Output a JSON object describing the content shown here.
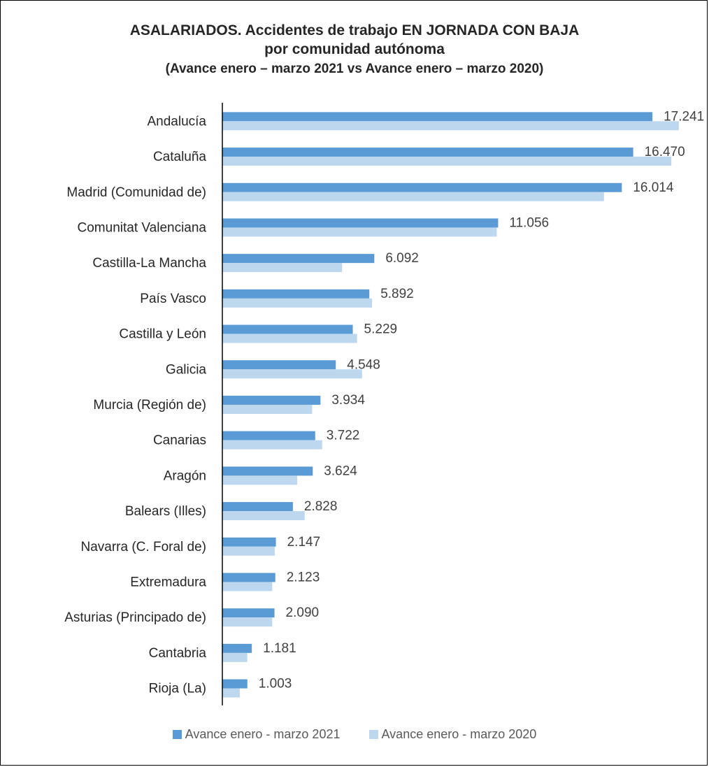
{
  "chart_data": {
    "type": "bar",
    "orientation": "horizontal",
    "title": "ASALARIADOS. Accidentes de trabajo EN JORNADA CON BAJA",
    "title2": "por comunidad autónoma",
    "subtitle": "(Avance enero – marzo 2021 vs Avance enero – marzo 2020)",
    "categories": [
      "Andalucía",
      "Cataluña",
      "Madrid (Comunidad de)",
      "Comunitat Valenciana",
      "Castilla-La Mancha",
      "País Vasco",
      "Castilla y León",
      "Galicia",
      "Murcia (Región de)",
      "Canarias",
      "Aragón",
      "Balears (Illes)",
      "Navarra (C. Foral de)",
      "Extremadura",
      "Asturias (Principado de)",
      "Cantabria",
      "Rioja (La)"
    ],
    "series": [
      {
        "name": "Avance enero - marzo 2021",
        "color": "#5b9bd5",
        "values": [
          17241,
          16470,
          16014,
          11056,
          6092,
          5892,
          5229,
          4548,
          3934,
          3722,
          3624,
          2828,
          2147,
          2123,
          2090,
          1181,
          1003
        ],
        "labels": [
          "17.241",
          "16.470",
          "16.014",
          "11.056",
          "6.092",
          "5.892",
          "5.229",
          "4.548",
          "3.934",
          "3.722",
          "3.624",
          "2.828",
          "2.147",
          "2.123",
          "2.090",
          "1.181",
          "1.003"
        ]
      },
      {
        "name": "Avance enero - marzo 2020",
        "color": "#bdd7ee",
        "values": [
          18300,
          18000,
          15300,
          11000,
          4800,
          6000,
          5400,
          5600,
          3600,
          4000,
          3000,
          3300,
          2100,
          2000,
          2000,
          1000,
          700
        ]
      }
    ],
    "xlim": [
      0,
      18500
    ],
    "legend_position": "bottom",
    "grid": false
  }
}
